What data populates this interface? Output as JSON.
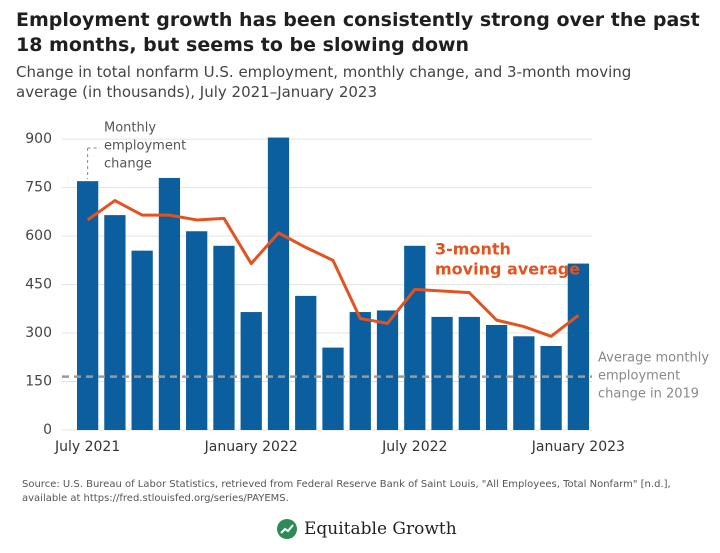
{
  "chart_data": {
    "type": "bar",
    "title": "Employment growth has been consistently strong over the past 18 months, but seems to be slowing down",
    "subtitle": "Change in total nonfarm U.S. employment, monthly change, and 3-month moving average (in thousands), July 2021–January 2023",
    "categories": [
      "July 2021",
      null,
      null,
      null,
      null,
      null,
      "January 2022",
      null,
      null,
      null,
      null,
      null,
      "July 2022",
      null,
      null,
      null,
      null,
      null,
      "January 2023"
    ],
    "series": [
      {
        "type": "bar",
        "label_lines": [
          "Monthly",
          "employment",
          "change"
        ],
        "color": "#0b5f9e",
        "values": [
          770,
          665,
          555,
          780,
          615,
          570,
          365,
          905,
          415,
          255,
          365,
          370,
          570,
          350,
          350,
          325,
          290,
          260,
          515
        ]
      },
      {
        "type": "line",
        "label_lines": [
          "3-month",
          "moving average"
        ],
        "color": "#e2531f",
        "values": [
          650,
          710,
          665,
          665,
          650,
          655,
          515,
          610,
          565,
          525,
          345,
          330,
          435,
          430,
          425,
          340,
          320,
          290,
          355
        ]
      }
    ],
    "reference_line": {
      "value": 165,
      "color": "#9a9a9a",
      "label_lines": [
        "Average monthly",
        "employment",
        "change in 2019"
      ]
    },
    "ylim": [
      0,
      950
    ],
    "yticks": [
      0,
      150,
      300,
      450,
      600,
      750,
      900
    ],
    "grid": true,
    "source": "Source: U.S. Bureau of Labor Statistics, retrieved from Federal Reserve Bank of Saint Louis, \"All Employees, Total Nonfarm\" [n.d.], available at https://fred.stlouisfed.org/series/PAYEMS.",
    "logo": "Equitable Growth"
  }
}
